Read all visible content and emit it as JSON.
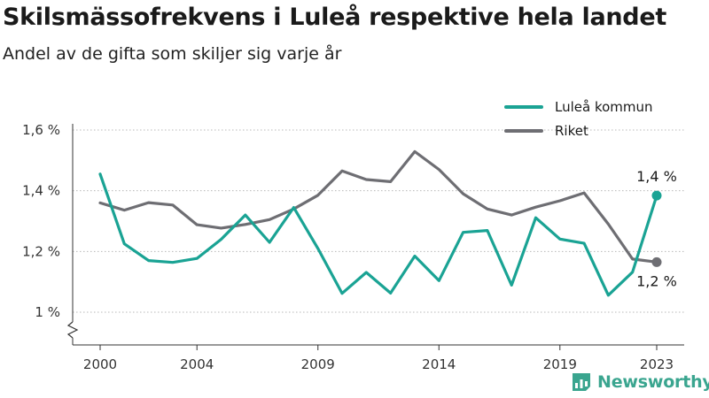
{
  "title": "Skilsmässofrekvens i Luleå respektive hela landet",
  "subtitle": "Andel av de gifta som skiljer sig varje år",
  "brand": {
    "name": "Newsworthy",
    "color": "#3aa58f"
  },
  "chart_data": {
    "type": "line",
    "x": [
      2000,
      2001,
      2002,
      2003,
      2004,
      2005,
      2006,
      2007,
      2008,
      2009,
      2010,
      2011,
      2012,
      2013,
      2014,
      2015,
      2016,
      2017,
      2018,
      2019,
      2020,
      2021,
      2022,
      2023
    ],
    "series": [
      {
        "name": "Luleå kommun",
        "color": "#1aa394",
        "values": [
          1.455,
          1.225,
          1.17,
          1.164,
          1.177,
          1.24,
          1.32,
          1.23,
          1.345,
          1.21,
          1.062,
          1.131,
          1.063,
          1.185,
          1.104,
          1.263,
          1.269,
          1.089,
          1.311,
          1.241,
          1.227,
          1.056,
          1.132,
          1.384
        ],
        "end_label": "1,4 %"
      },
      {
        "name": "Riket",
        "color": "#6e6e73",
        "values": [
          1.36,
          1.336,
          1.361,
          1.353,
          1.288,
          1.277,
          1.289,
          1.305,
          1.34,
          1.385,
          1.465,
          1.437,
          1.43,
          1.529,
          1.47,
          1.39,
          1.34,
          1.32,
          1.346,
          1.367,
          1.393,
          1.29,
          1.175,
          1.165
        ],
        "end_label": "1,2 %"
      }
    ],
    "x_ticks": [
      2000,
      2004,
      2009,
      2014,
      2019,
      2023
    ],
    "y_ticks": [
      {
        "value": 1.0,
        "label": "1 %"
      },
      {
        "value": 1.2,
        "label": "1,2 %"
      },
      {
        "value": 1.4,
        "label": "1,4 %"
      },
      {
        "value": 1.6,
        "label": "1,6 %"
      }
    ],
    "xlabel": "",
    "ylabel": "",
    "ylim": [
      0.9,
      1.6
    ],
    "grid": "horizontal",
    "legend_position": "top-right",
    "axis_break": true
  }
}
